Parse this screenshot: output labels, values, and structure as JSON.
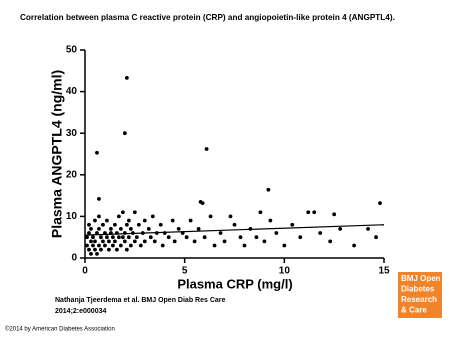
{
  "chart_data": {
    "type": "scatter",
    "title": "Correlation between plasma C reactive protein (CRP) and angiopoietin-like protein 4 (ANGPTL4).",
    "x_label": "Plasma CRP (mg/l)",
    "y_label": "Plasma ANGPTL4 (ng/ml)",
    "xlim": [
      0,
      15
    ],
    "xticks": [
      0,
      5,
      10,
      15
    ],
    "ylim": [
      0,
      50
    ],
    "yticks": [
      0,
      10,
      20,
      30,
      40,
      50
    ],
    "color": "#000000",
    "x": [
      0.1,
      0.1,
      0.2,
      0.2,
      0.2,
      0.3,
      0.3,
      0.3,
      0.4,
      0.4,
      0.5,
      0.5,
      0.5,
      0.6,
      0.6,
      0.7,
      0.7,
      0.7,
      0.8,
      0.8,
      0.9,
      0.9,
      1.0,
      1.0,
      1.1,
      1.1,
      1.2,
      1.2,
      1.3,
      1.3,
      1.4,
      1.4,
      1.5,
      1.5,
      1.6,
      1.6,
      1.7,
      1.7,
      1.8,
      1.8,
      1.9,
      1.9,
      2.0,
      2.0,
      2.1,
      2.1,
      2.2,
      2.2,
      2.3,
      2.3,
      2.4,
      2.5,
      2.5,
      2.6,
      2.7,
      2.8,
      2.9,
      3.0,
      3.0,
      3.2,
      3.3,
      3.4,
      3.5,
      3.6,
      3.8,
      3.9,
      4.0,
      4.2,
      4.4,
      4.5,
      4.7,
      4.9,
      5.1,
      5.3,
      5.5,
      5.7,
      6.0,
      6.3,
      6.5,
      6.8,
      7.0,
      7.5,
      7.8,
      8.0,
      8.3,
      8.6,
      9.0,
      9.3,
      9.6,
      10.0,
      10.4,
      10.8,
      11.8,
      12.3,
      12.8,
      13.5,
      14.2,
      14.6,
      2.1,
      2.0,
      0.6,
      6.1,
      9.2,
      0.7,
      5.8,
      5.9,
      14.8,
      11.2,
      11.5,
      8.8,
      7.3,
      12.5
    ],
    "y": [
      3,
      5,
      2,
      6,
      8,
      1,
      4,
      7,
      3,
      5,
      2,
      9,
      4,
      6,
      1,
      3,
      7,
      10,
      5,
      2,
      4,
      8,
      3,
      6,
      5,
      9,
      2,
      4,
      7,
      6,
      3,
      5,
      8,
      4,
      2,
      6,
      5,
      10,
      3,
      7,
      5,
      11,
      4,
      6,
      8,
      2,
      5,
      9,
      3,
      7,
      6,
      4,
      11,
      5,
      8,
      3,
      6,
      9,
      4,
      7,
      5,
      10,
      4,
      6,
      8,
      3,
      6,
      5,
      9,
      4,
      7,
      6,
      5,
      9,
      4,
      7,
      5,
      10,
      3,
      6,
      4,
      8,
      5,
      3,
      7,
      5,
      4,
      9,
      6,
      3,
      8,
      5,
      6,
      4,
      7,
      3,
      7,
      5,
      43.3,
      30,
      25.3,
      26.2,
      16.4,
      14.2,
      13.5,
      13.2,
      13.2,
      11,
      11,
      11,
      10,
      10.5
    ],
    "fit_line": {
      "x": [
        0,
        15
      ],
      "y": [
        5.5,
        8
      ]
    },
    "citation": [
      "Nathanja Tjeerdema et al. BMJ Open Diab Res Care",
      "2014;2:e000034"
    ],
    "logo": [
      "BMJ Open",
      "Diabetes",
      "Research",
      "& Care"
    ],
    "logo_color": "#f0842a",
    "footer": "©2014 by American Diabetes Association"
  }
}
